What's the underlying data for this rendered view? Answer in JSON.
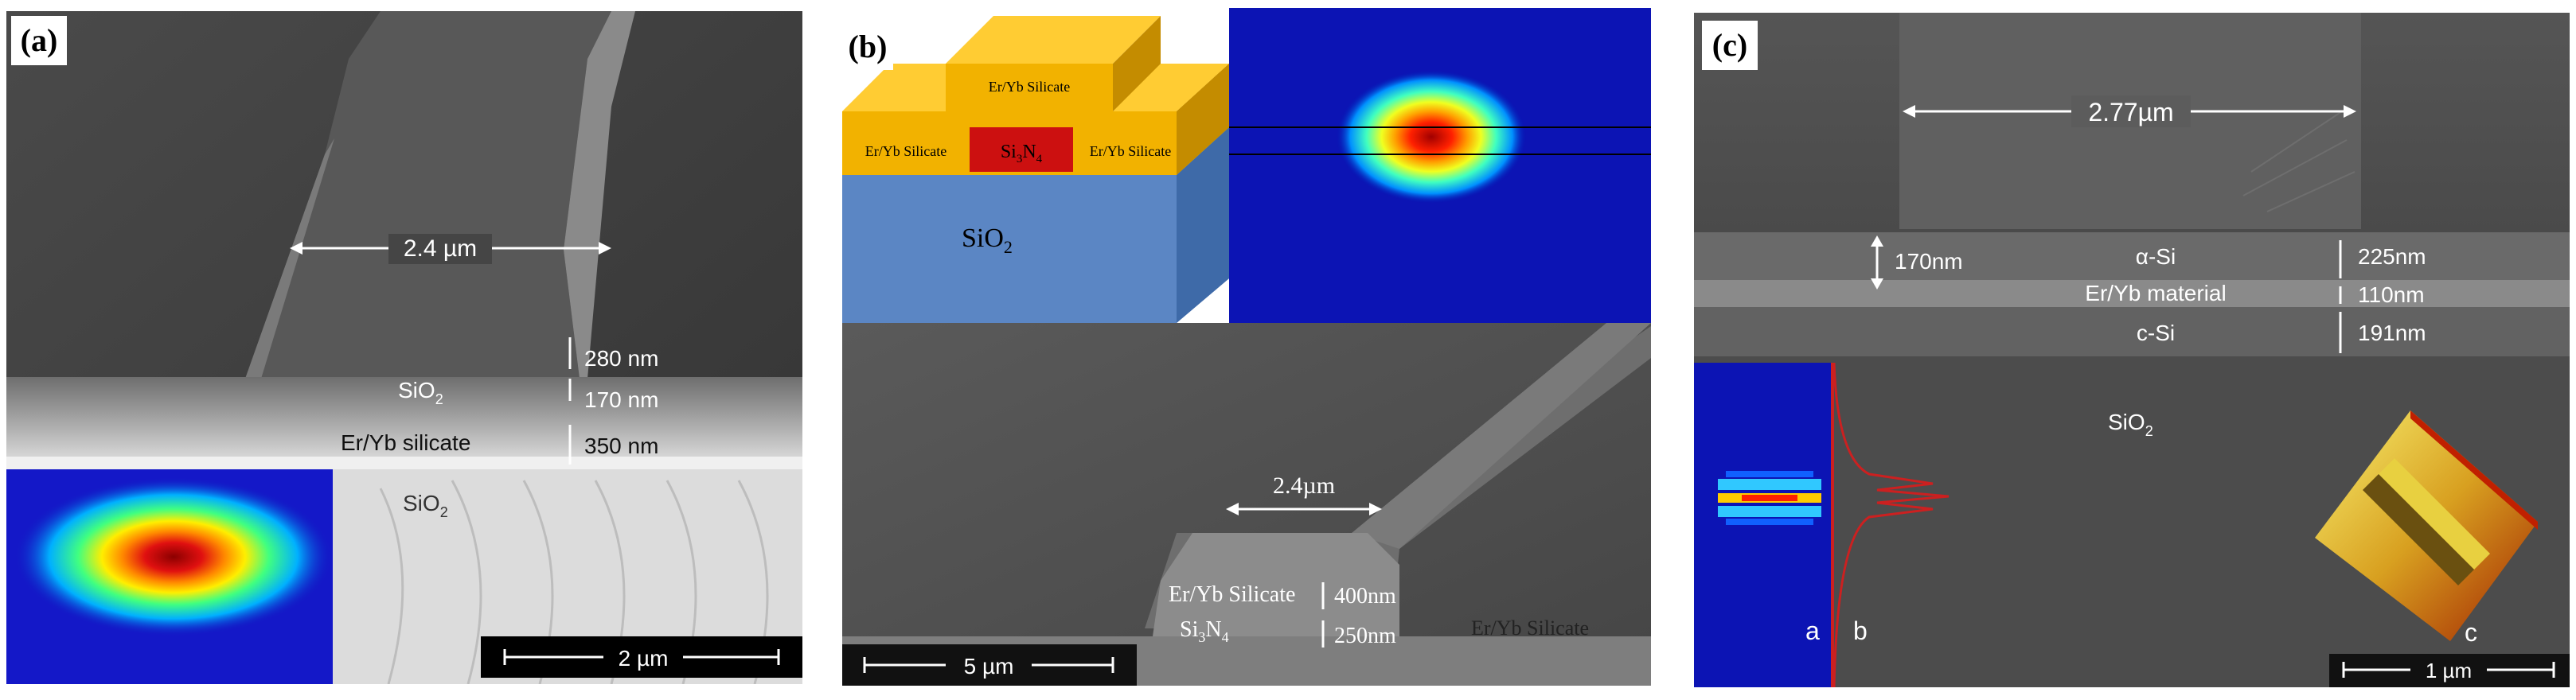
{
  "panels": {
    "a": {
      "label": "(a)",
      "width_label": "2.4 µm",
      "thickness_top": "280 nm",
      "thickness_mid": "170 nm",
      "thickness_bot": "350 nm",
      "layer_sio2_top": "SiO",
      "layer_sio2_top_sub": "2",
      "layer_eryb": "Er/Yb silicate",
      "layer_sio2_bot": "SiO",
      "layer_sio2_bot_sub": "2",
      "scale_bar": "2 µm"
    },
    "b": {
      "label": "(b)",
      "schematic_top": "Er/Yb Silicate",
      "schematic_left": "Er/Yb Silicate",
      "schematic_right": "Er/Yb Silicate",
      "schematic_core": "Si",
      "schematic_core_sub1": "3",
      "schematic_core_mid": "N",
      "schematic_core_sub2": "4",
      "schematic_substrate": "SiO",
      "schematic_substrate_sub": "2",
      "width_label": "2.4µm",
      "layer_eryb": "Er/Yb Silicate",
      "layer_core": "Si",
      "layer_core_sub1": "3",
      "layer_core_mid": "N",
      "layer_core_sub2": "4",
      "thickness_top": "400nm",
      "thickness_bot": "250nm",
      "layer_eryb_right": "Er/Yb Silicate",
      "scale_bar": "5 µm"
    },
    "c": {
      "label": "(c)",
      "width_label": "2.77µm",
      "thickness_left": "170nm",
      "layer_asi": "α-Si",
      "layer_eryb": "Er/Yb material",
      "layer_csi": "c-Si",
      "thickness_asi": "225nm",
      "thickness_eryb": "110nm",
      "thickness_csi": "191nm",
      "layer_sio2": "SiO",
      "layer_sio2_sub": "2",
      "sublabel_a": "a",
      "sublabel_b": "b",
      "sublabel_c": "c",
      "scale_bar": "1 µm"
    }
  }
}
